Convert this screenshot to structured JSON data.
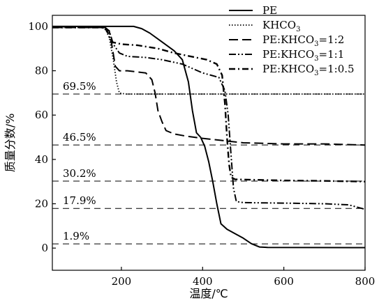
{
  "chart_data": {
    "type": "line",
    "xlabel": "温度/℃",
    "ylabel": "质量分数/%",
    "xlim": [
      30,
      800
    ],
    "ylim": [
      -10,
      105
    ],
    "x_ticks": [
      200,
      400,
      600,
      800
    ],
    "y_ticks": [
      0,
      20,
      40,
      60,
      80,
      100
    ],
    "grid": false,
    "legend_position": "top-right",
    "series": [
      {
        "name": "PE",
        "legend_main": "PE",
        "legend_sub": "",
        "legend_tail": "",
        "dash": "solid",
        "points": [
          [
            30,
            100
          ],
          [
            230,
            100
          ],
          [
            250,
            99
          ],
          [
            270,
            97
          ],
          [
            300,
            93
          ],
          [
            330,
            89
          ],
          [
            350,
            85
          ],
          [
            365,
            75
          ],
          [
            375,
            62
          ],
          [
            385,
            52
          ],
          [
            395,
            50
          ],
          [
            405,
            46
          ],
          [
            415,
            39
          ],
          [
            425,
            30
          ],
          [
            435,
            20
          ],
          [
            445,
            11
          ],
          [
            460,
            8.5
          ],
          [
            480,
            6.5
          ],
          [
            500,
            4.5
          ],
          [
            520,
            2
          ],
          [
            540,
            0.5
          ],
          [
            560,
            0.3
          ],
          [
            800,
            0.2
          ]
        ]
      },
      {
        "name": "KHCO3",
        "legend_main": "KHCO",
        "legend_sub": "3",
        "legend_tail": "",
        "dash": "dot",
        "points": [
          [
            30,
            99.5
          ],
          [
            150,
            99.5
          ],
          [
            160,
            99
          ],
          [
            170,
            95
          ],
          [
            180,
            85
          ],
          [
            188,
            75
          ],
          [
            195,
            70
          ],
          [
            210,
            69.5
          ],
          [
            800,
            69.5
          ]
        ]
      },
      {
        "name": "PE:KHCO3=1:2",
        "legend_main": "PE:KHCO",
        "legend_sub": "3",
        "legend_tail": "=1:2",
        "dash": "dash",
        "points": [
          [
            30,
            99.5
          ],
          [
            160,
            99.5
          ],
          [
            170,
            98
          ],
          [
            178,
            90
          ],
          [
            185,
            82
          ],
          [
            195,
            80
          ],
          [
            215,
            80
          ],
          [
            260,
            79
          ],
          [
            275,
            76
          ],
          [
            283,
            70
          ],
          [
            290,
            62
          ],
          [
            300,
            57
          ],
          [
            310,
            53
          ],
          [
            330,
            51.5
          ],
          [
            360,
            50.5
          ],
          [
            400,
            49.5
          ],
          [
            450,
            48.5
          ],
          [
            500,
            47.5
          ],
          [
            600,
            47
          ],
          [
            700,
            47
          ],
          [
            800,
            46.5
          ]
        ]
      },
      {
        "name": "PE:KHCO3=1:1",
        "legend_main": "PE:KHCO",
        "legend_sub": "3",
        "legend_tail": "=1:1",
        "dash": "dashdotdot",
        "points": [
          [
            30,
            99.5
          ],
          [
            160,
            99.5
          ],
          [
            170,
            98
          ],
          [
            180,
            92
          ],
          [
            195,
            88
          ],
          [
            215,
            86.5
          ],
          [
            260,
            86
          ],
          [
            300,
            85
          ],
          [
            350,
            83
          ],
          [
            400,
            79
          ],
          [
            440,
            77
          ],
          [
            455,
            71
          ],
          [
            463,
            60
          ],
          [
            470,
            42
          ],
          [
            476,
            27
          ],
          [
            483,
            21
          ],
          [
            500,
            20.5
          ],
          [
            600,
            20.3
          ],
          [
            700,
            20
          ],
          [
            760,
            19.5
          ],
          [
            780,
            18.5
          ],
          [
            800,
            17.5
          ]
        ]
      },
      {
        "name": "PE:KHCO3=1:0.5",
        "legend_main": "PE:KHCO",
        "legend_sub": "3",
        "legend_tail": "=1:0.5",
        "dash": "longdash",
        "points": [
          [
            30,
            99.5
          ],
          [
            155,
            99.5
          ],
          [
            165,
            98
          ],
          [
            175,
            93
          ],
          [
            200,
            92
          ],
          [
            240,
            91.5
          ],
          [
            290,
            90
          ],
          [
            330,
            88
          ],
          [
            370,
            86.5
          ],
          [
            410,
            85
          ],
          [
            435,
            83
          ],
          [
            448,
            78
          ],
          [
            455,
            65
          ],
          [
            460,
            50
          ],
          [
            465,
            38
          ],
          [
            470,
            32
          ],
          [
            480,
            31
          ],
          [
            600,
            30.5
          ],
          [
            700,
            30.3
          ],
          [
            800,
            30
          ]
        ]
      }
    ],
    "reference_lines": [
      {
        "label": "69.5%",
        "y": 69.5
      },
      {
        "label": "46.5%",
        "y": 46.5
      },
      {
        "label": "30.2%",
        "y": 30.2
      },
      {
        "label": "17.9%",
        "y": 17.9
      },
      {
        "label": "1.9%",
        "y": 1.9
      }
    ]
  }
}
